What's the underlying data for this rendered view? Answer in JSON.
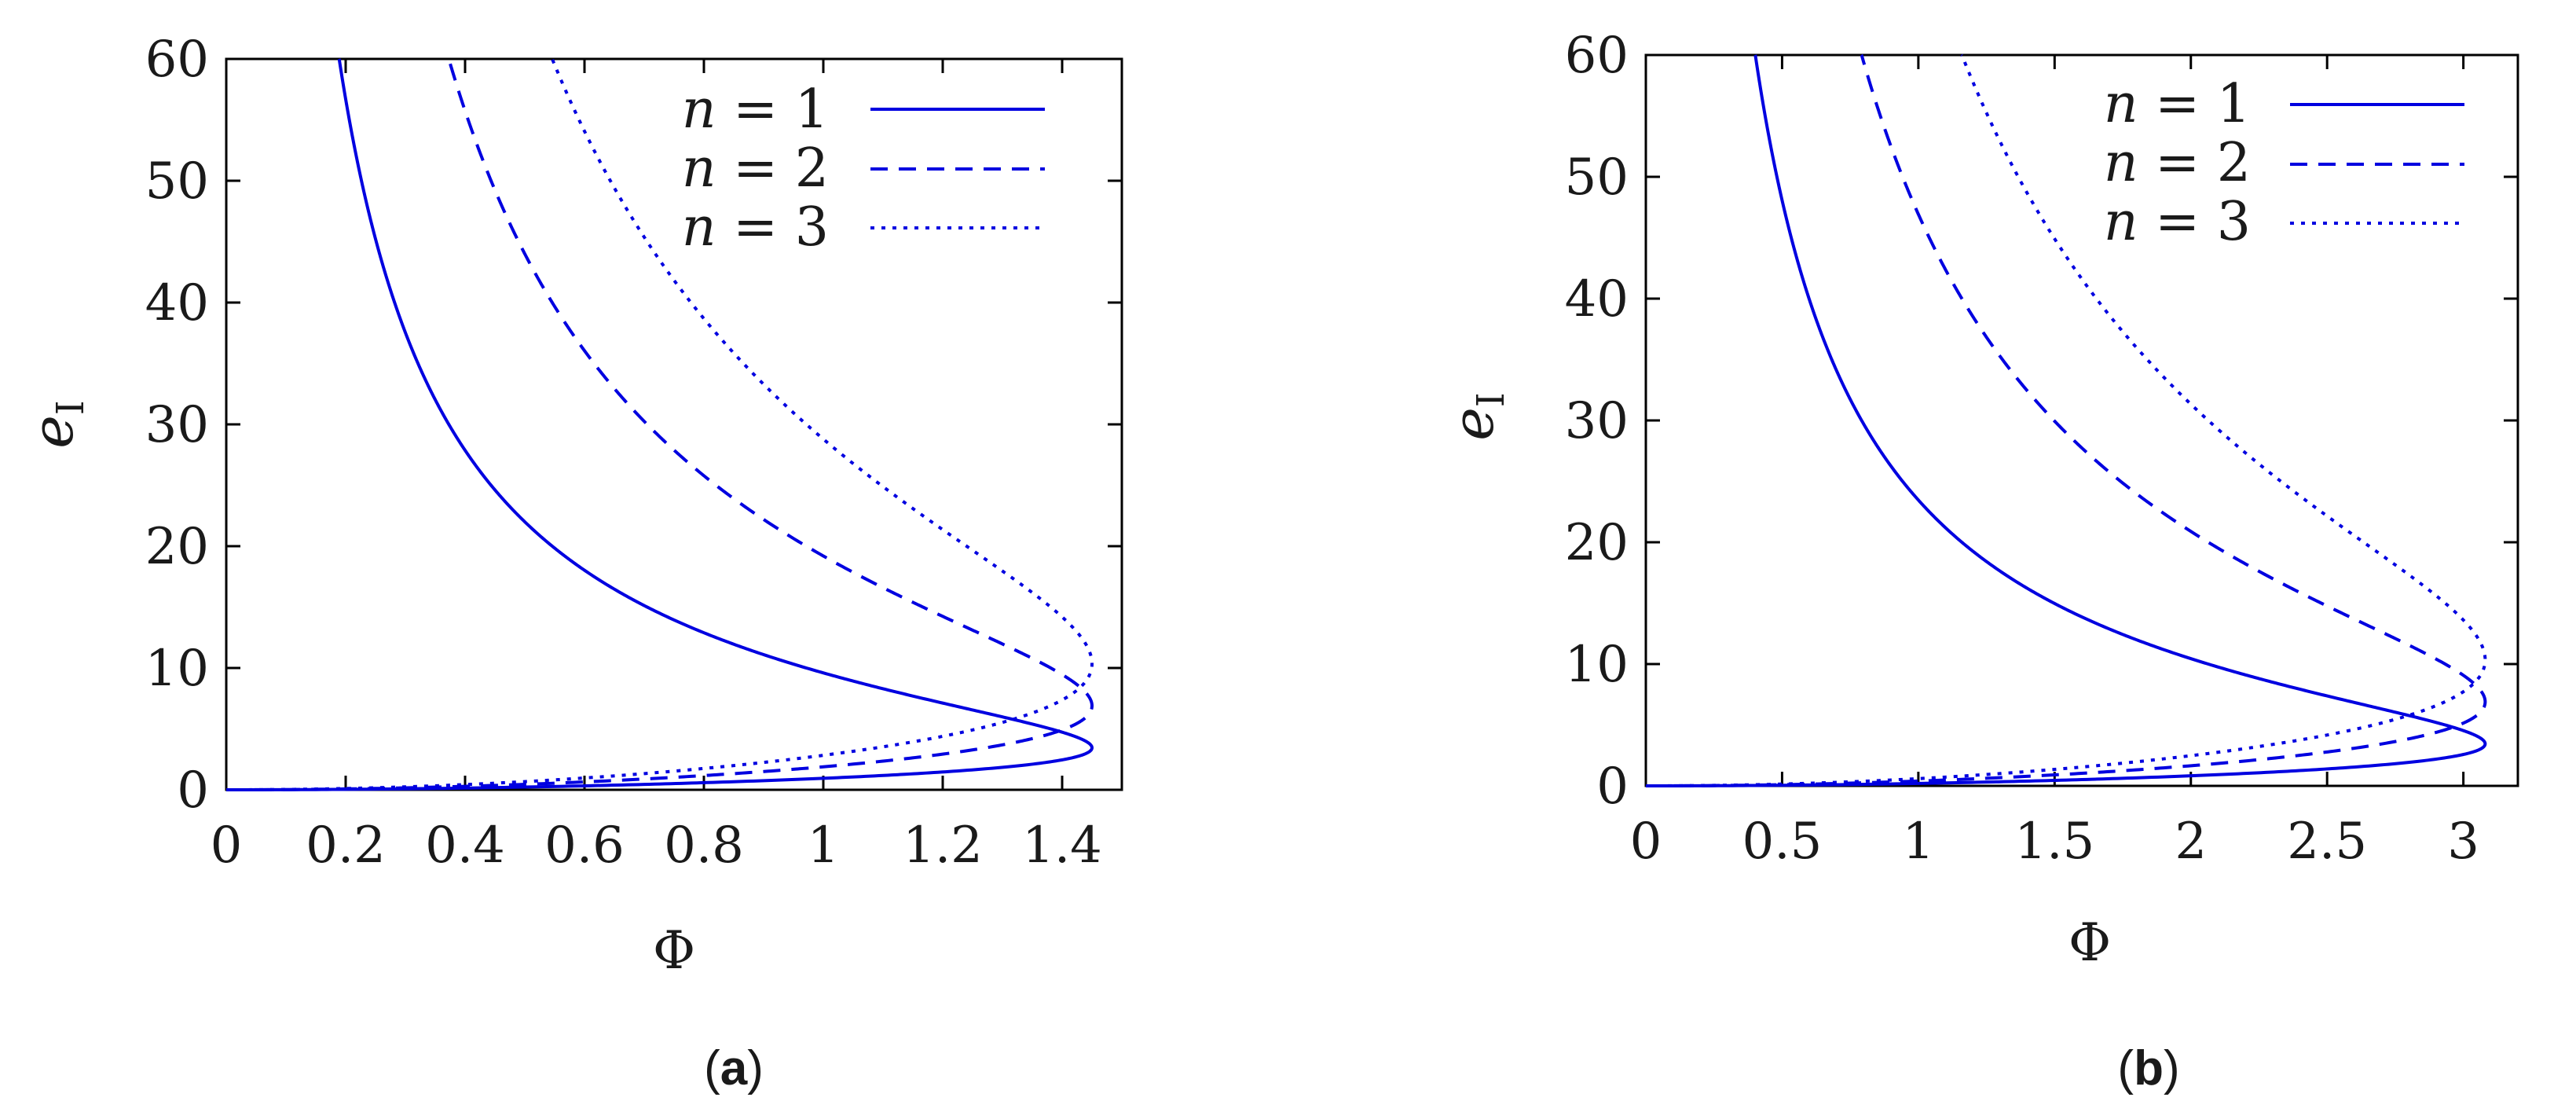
{
  "chart_data": [
    {
      "panel": "a",
      "caption_open": "(",
      "caption_letter": "a",
      "caption_close": ")",
      "type": "line",
      "xlabel": "Φ",
      "ylabel_base": "e",
      "ylabel_sub": "I",
      "xlim": [
        0,
        1.5
      ],
      "ylim": [
        0,
        60
      ],
      "xticks": [
        0,
        0.2,
        0.4,
        0.6,
        0.8,
        1.0,
        1.2,
        1.4
      ],
      "xtick_labels": [
        "0",
        "0.2",
        "0.4",
        "0.6",
        "0.8",
        "1",
        "1.2",
        "1.4"
      ],
      "yticks": [
        0,
        10,
        20,
        30,
        40,
        50,
        60
      ],
      "ytick_labels": [
        "0",
        "10",
        "20",
        "30",
        "40",
        "50",
        "60"
      ],
      "legend_position": "top-right",
      "series": [
        {
          "name": "n = 1",
          "label_var": "n",
          "label_eq": " = ",
          "label_num": "1",
          "style": "solid",
          "color": "#0000e0",
          "n": 1,
          "phi_max": 1.45
        },
        {
          "name": "n = 2",
          "label_var": "n",
          "label_eq": " = ",
          "label_num": "2",
          "style": "dashed",
          "color": "#0000e0",
          "n": 2,
          "phi_max": 1.45
        },
        {
          "name": "n = 3",
          "label_var": "n",
          "label_eq": " = ",
          "label_num": "3",
          "style": "dotted",
          "color": "#0000e0",
          "n": 3,
          "phi_max": 1.45
        }
      ]
    },
    {
      "panel": "b",
      "caption_open": "(",
      "caption_letter": "b",
      "caption_close": ")",
      "type": "line",
      "xlabel": "Φ",
      "ylabel_base": "e",
      "ylabel_sub": "I",
      "xlim": [
        0,
        3.2
      ],
      "ylim": [
        0,
        60
      ],
      "xticks": [
        0,
        0.5,
        1.0,
        1.5,
        2.0,
        2.5,
        3.0
      ],
      "xtick_labels": [
        "0",
        "0.5",
        "1",
        "1.5",
        "2",
        "2.5",
        "3"
      ],
      "yticks": [
        0,
        10,
        20,
        30,
        40,
        50,
        60
      ],
      "ytick_labels": [
        "0",
        "10",
        "20",
        "30",
        "40",
        "50",
        "60"
      ],
      "legend_position": "top-right",
      "series": [
        {
          "name": "n = 1",
          "label_var": "n",
          "label_eq": " = ",
          "label_num": "1",
          "style": "solid",
          "color": "#0000e0",
          "n": 1,
          "phi_max": 3.08
        },
        {
          "name": "n = 2",
          "label_var": "n",
          "label_eq": " = ",
          "label_num": "2",
          "style": "dashed",
          "color": "#0000e0",
          "n": 2,
          "phi_max": 3.08
        },
        {
          "name": "n = 3",
          "label_var": "n",
          "label_eq": " = ",
          "label_num": "3",
          "style": "dotted",
          "color": "#0000e0",
          "n": 3,
          "phi_max": 3.08
        }
      ]
    }
  ]
}
